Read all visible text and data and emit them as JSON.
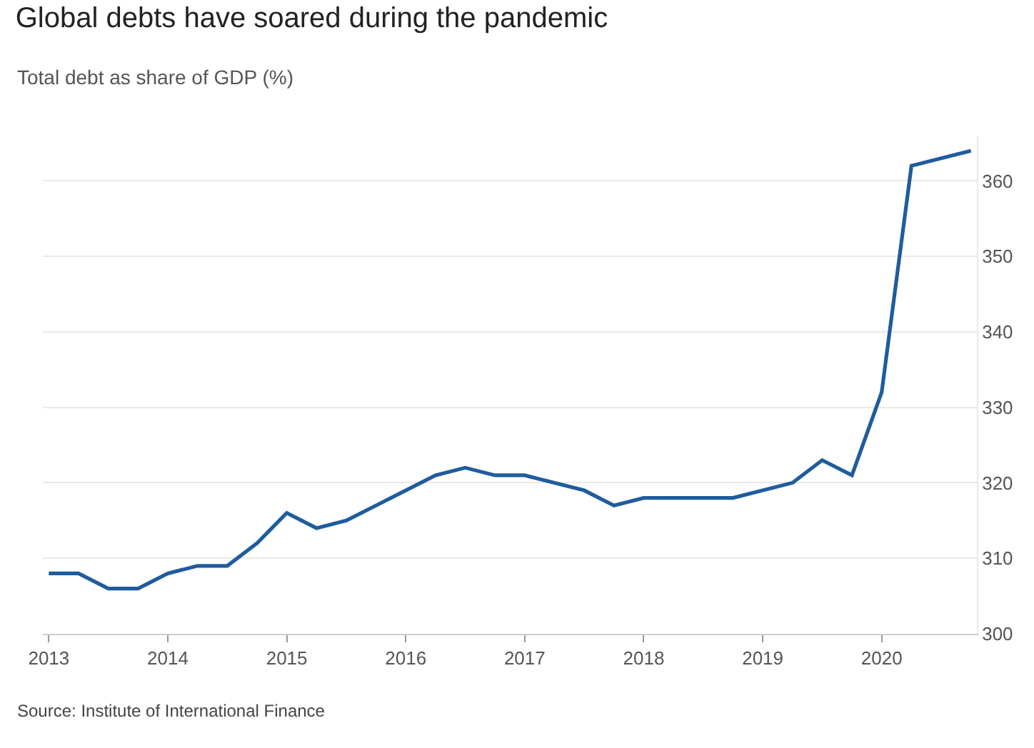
{
  "chart_data": {
    "type": "line",
    "title": "Global debts have soared during the pandemic",
    "subtitle": "Total debt as share of GDP (%)",
    "annotations": [
      "Source: Institute of International Finance"
    ],
    "x": [
      2013,
      2013.25,
      2013.5,
      2013.75,
      2014,
      2014.25,
      2014.5,
      2014.75,
      2015,
      2015.25,
      2015.5,
      2015.75,
      2016,
      2016.25,
      2016.5,
      2016.75,
      2017,
      2017.25,
      2017.5,
      2017.75,
      2018,
      2018.25,
      2018.5,
      2018.75,
      2019,
      2019.25,
      2019.5,
      2019.75,
      2020,
      2020.25,
      2020.5,
      2020.75
    ],
    "series": [
      {
        "color": "#1f5c9e",
        "values": [
          308,
          308,
          306,
          306,
          308,
          309,
          309,
          312,
          316,
          314,
          315,
          317,
          319,
          321,
          322,
          321,
          321,
          320,
          319,
          317,
          318,
          318,
          318,
          318,
          319,
          320,
          323,
          321,
          332,
          362,
          363,
          364
        ]
      }
    ],
    "xlim": [
      2012.95,
      2020.8
    ],
    "xticks": [
      2013,
      2014,
      2015,
      2016,
      2017,
      2018,
      2019,
      2020
    ],
    "ylim": [
      300,
      366
    ],
    "yticks": [
      300,
      310,
      320,
      330,
      340,
      350,
      360
    ],
    "grid": "y",
    "marker": "none",
    "line_style": "solid"
  }
}
